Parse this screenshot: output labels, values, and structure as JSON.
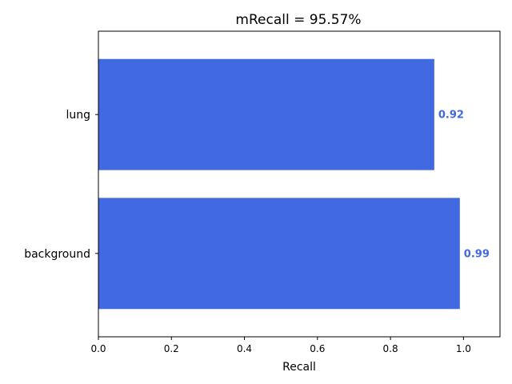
{
  "chart_data": {
    "type": "bar",
    "orientation": "horizontal",
    "title": "mRecall = 95.57%",
    "xlabel": "Recall",
    "ylabel": "",
    "categories": [
      "background",
      "lung"
    ],
    "values": [
      0.99,
      0.92
    ],
    "value_labels": [
      "0.99",
      "0.92"
    ],
    "xlim": [
      0.0,
      1.1
    ],
    "xticks": [
      0.0,
      0.2,
      0.4,
      0.6,
      0.8,
      1.0
    ],
    "xtick_labels": [
      "0.0",
      "0.2",
      "0.4",
      "0.6",
      "0.8",
      "1.0"
    ],
    "grid": false,
    "legend": "none",
    "bar_color": "#4169e1",
    "label_color": "#4169e1"
  }
}
